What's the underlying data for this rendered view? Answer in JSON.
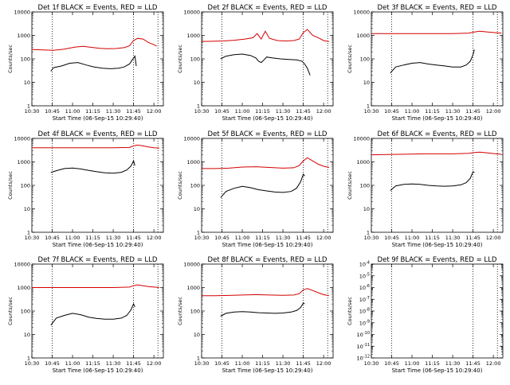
{
  "figure": {
    "background": "#ffffff",
    "axis_color": "#000000",
    "event_color": "#000000",
    "lld_color": "#d40000"
  },
  "chart_data": [
    {
      "id": "p1",
      "type": "line",
      "title": "Det 1f BLACK = Events, RED = LLD",
      "xlabel": "Start Time (06-Sep-15 10:29:40)",
      "ylabel": "Counts/sec",
      "xlim": [
        "10:30",
        "12:07"
      ],
      "ylim": [
        1,
        10000
      ],
      "yscale": "log",
      "xticks": [
        "10:30",
        "10:45",
        "11:00",
        "11:15",
        "11:30",
        "11:45",
        "12:00"
      ],
      "yticks": [
        "1",
        "10",
        "100",
        "1000",
        "10000"
      ],
      "vlines": [
        "10:45",
        "11:45",
        "12:03"
      ],
      "series": [
        {
          "name": "Events",
          "x": [
            "10:44",
            "10:46",
            "10:52",
            "10:58",
            "11:04",
            "11:10",
            "11:16",
            "11:22",
            "11:28",
            "11:34",
            "11:38",
            "11:42",
            "11:44",
            "11:46",
            "11:47"
          ],
          "values": [
            30,
            42,
            50,
            65,
            70,
            55,
            45,
            40,
            38,
            40,
            45,
            60,
            90,
            130,
            50
          ]
        },
        {
          "name": "LLD",
          "x": [
            "10:30",
            "10:38",
            "10:46",
            "10:54",
            "11:02",
            "11:08",
            "11:14",
            "11:20",
            "11:26",
            "11:32",
            "11:38",
            "11:42",
            "11:45",
            "11:48",
            "11:52",
            "11:56",
            "12:00",
            "12:02"
          ],
          "values": [
            250,
            240,
            230,
            260,
            320,
            340,
            310,
            280,
            270,
            275,
            300,
            360,
            600,
            750,
            700,
            500,
            400,
            350
          ]
        }
      ]
    },
    {
      "id": "p2",
      "type": "line",
      "title": "Det 2f BLACK = Events, RED = LLD",
      "xlabel": "Start Time (06-Sep-15 10:29:40)",
      "ylabel": "Counts/sec",
      "xlim": [
        "10:30",
        "12:07"
      ],
      "ylim": [
        1,
        10000
      ],
      "yscale": "log",
      "xticks": [
        "10:30",
        "10:45",
        "11:00",
        "11:15",
        "11:30",
        "11:45",
        "12:00"
      ],
      "yticks": [
        "1",
        "10",
        "100",
        "1000",
        "10000"
      ],
      "vlines": [
        "10:45",
        "11:45",
        "12:03"
      ],
      "series": [
        {
          "name": "Events",
          "x": [
            "10:44",
            "10:48",
            "10:54",
            "11:00",
            "11:06",
            "11:10",
            "11:12",
            "11:14",
            "11:16",
            "11:18",
            "11:22",
            "11:28",
            "11:34",
            "11:40",
            "11:44",
            "11:46",
            "11:48",
            "11:50"
          ],
          "values": [
            100,
            130,
            150,
            160,
            140,
            110,
            80,
            70,
            90,
            120,
            110,
            100,
            95,
            90,
            80,
            60,
            40,
            20
          ]
        },
        {
          "name": "LLD",
          "x": [
            "10:30",
            "10:38",
            "10:46",
            "10:54",
            "11:02",
            "11:08",
            "11:11",
            "11:14",
            "11:17",
            "11:20",
            "11:26",
            "11:32",
            "11:38",
            "11:42",
            "11:45",
            "11:48",
            "11:52",
            "11:56",
            "12:00",
            "12:04"
          ],
          "values": [
            550,
            560,
            580,
            620,
            700,
            800,
            1200,
            700,
            1500,
            750,
            600,
            580,
            600,
            700,
            1300,
            1800,
            1000,
            800,
            600,
            550
          ]
        }
      ]
    },
    {
      "id": "p3",
      "type": "line",
      "title": "Det 3f BLACK = Events, RED = LLD",
      "xlabel": "Start Time (06-Sep-15 10:29:40)",
      "ylabel": "Counts/sec",
      "xlim": [
        "10:30",
        "12:07"
      ],
      "ylim": [
        1,
        10000
      ],
      "yscale": "log",
      "xticks": [
        "10:30",
        "10:45",
        "11:00",
        "11:15",
        "11:30",
        "11:45",
        "12:00"
      ],
      "yticks": [
        "1",
        "10",
        "100",
        "1000",
        "10000"
      ],
      "vlines": [
        "10:45",
        "11:45",
        "12:03"
      ],
      "series": [
        {
          "name": "Events",
          "x": [
            "10:44",
            "10:48",
            "10:54",
            "11:00",
            "11:06",
            "11:12",
            "11:18",
            "11:24",
            "11:30",
            "11:36",
            "11:40",
            "11:43",
            "11:45",
            "11:46"
          ],
          "values": [
            25,
            45,
            55,
            65,
            70,
            60,
            55,
            50,
            45,
            45,
            55,
            80,
            150,
            250
          ]
        },
        {
          "name": "LLD",
          "x": [
            "10:30",
            "10:50",
            "11:10",
            "11:30",
            "11:42",
            "11:46",
            "11:50",
            "11:56",
            "12:02",
            "12:06"
          ],
          "values": [
            1200,
            1200,
            1200,
            1200,
            1250,
            1400,
            1500,
            1400,
            1300,
            1250
          ]
        }
      ]
    },
    {
      "id": "p4",
      "type": "line",
      "title": "Det 4f BLACK = Events, RED = LLD",
      "xlabel": "Start Time (06-Sep-15 10:29:40)",
      "ylabel": "Counts/sec",
      "xlim": [
        "10:30",
        "12:07"
      ],
      "ylim": [
        1,
        10000
      ],
      "yscale": "log",
      "xticks": [
        "10:30",
        "10:45",
        "11:00",
        "11:15",
        "11:30",
        "11:45",
        "12:00"
      ],
      "yticks": [
        "1",
        "10",
        "100",
        "1000",
        "10000"
      ],
      "vlines": [
        "10:45",
        "11:45",
        "12:03"
      ],
      "series": [
        {
          "name": "Events",
          "x": [
            "10:44",
            "10:48",
            "10:54",
            "11:00",
            "11:06",
            "11:12",
            "11:18",
            "11:24",
            "11:30",
            "11:36",
            "11:40",
            "11:43",
            "11:45",
            "11:46"
          ],
          "values": [
            350,
            420,
            520,
            550,
            500,
            430,
            380,
            340,
            330,
            360,
            450,
            650,
            1100,
            700
          ]
        },
        {
          "name": "LLD",
          "x": [
            "10:30",
            "10:50",
            "11:10",
            "11:30",
            "11:42",
            "11:45",
            "11:48",
            "11:52",
            "11:56",
            "12:00",
            "12:04"
          ],
          "values": [
            4000,
            4000,
            4000,
            4000,
            4100,
            4800,
            5200,
            4800,
            4300,
            4000,
            3900
          ]
        }
      ]
    },
    {
      "id": "p5",
      "type": "line",
      "title": "Det 5f BLACK = Events, RED = LLD",
      "xlabel": "Start Time (06-Sep-15 10:29:40)",
      "ylabel": "Counts/sec",
      "xlim": [
        "10:30",
        "12:07"
      ],
      "ylim": [
        1,
        10000
      ],
      "yscale": "log",
      "xticks": [
        "10:30",
        "10:45",
        "11:00",
        "11:15",
        "11:30",
        "11:45",
        "12:00"
      ],
      "yticks": [
        "1",
        "10",
        "100",
        "1000",
        "10000"
      ],
      "vlines": [
        "10:45",
        "11:45",
        "12:03"
      ],
      "series": [
        {
          "name": "Events",
          "x": [
            "10:44",
            "10:48",
            "10:54",
            "11:00",
            "11:06",
            "11:12",
            "11:18",
            "11:24",
            "11:30",
            "11:36",
            "11:40",
            "11:43",
            "11:45",
            "11:46"
          ],
          "values": [
            30,
            55,
            75,
            90,
            80,
            65,
            58,
            52,
            50,
            55,
            75,
            140,
            300,
            250
          ]
        },
        {
          "name": "LLD",
          "x": [
            "10:30",
            "10:40",
            "10:50",
            "11:00",
            "11:10",
            "11:20",
            "11:30",
            "11:38",
            "11:42",
            "11:45",
            "11:48",
            "11:52",
            "11:56",
            "12:00",
            "12:04"
          ],
          "values": [
            520,
            520,
            540,
            600,
            620,
            580,
            540,
            560,
            700,
            1100,
            1500,
            1100,
            800,
            650,
            580
          ]
        }
      ]
    },
    {
      "id": "p6",
      "type": "line",
      "title": "Det 6f BLACK = Events, RED = LLD",
      "xlabel": "Start Time (06-Sep-15 10:29:40)",
      "ylabel": "Counts/sec",
      "xlim": [
        "10:30",
        "12:07"
      ],
      "ylim": [
        1,
        10000
      ],
      "yscale": "log",
      "xticks": [
        "10:30",
        "10:45",
        "11:00",
        "11:15",
        "11:30",
        "11:45",
        "12:00"
      ],
      "yticks": [
        "1",
        "10",
        "100",
        "1000",
        "10000"
      ],
      "vlines": [
        "10:45",
        "11:45",
        "12:03"
      ],
      "series": [
        {
          "name": "Events",
          "x": [
            "10:44",
            "10:48",
            "10:54",
            "11:00",
            "11:06",
            "11:12",
            "11:18",
            "11:24",
            "11:30",
            "11:36",
            "11:40",
            "11:43",
            "11:45",
            "11:46"
          ],
          "values": [
            60,
            95,
            110,
            115,
            110,
            100,
            95,
            92,
            95,
            105,
            130,
            200,
            380,
            350
          ]
        },
        {
          "name": "LLD",
          "x": [
            "10:30",
            "10:50",
            "11:10",
            "11:30",
            "11:42",
            "11:46",
            "11:50",
            "11:56",
            "12:02",
            "12:06"
          ],
          "values": [
            2000,
            2100,
            2200,
            2200,
            2300,
            2500,
            2600,
            2400,
            2200,
            2100
          ]
        }
      ]
    },
    {
      "id": "p7",
      "type": "line",
      "title": "Det 7f BLACK = Events, RED = LLD",
      "xlabel": "Start Time (06-Sep-15 10:29:40)",
      "ylabel": "Counts/sec",
      "xlim": [
        "10:30",
        "12:07"
      ],
      "ylim": [
        1,
        10000
      ],
      "yscale": "log",
      "xticks": [
        "10:30",
        "10:45",
        "11:00",
        "11:15",
        "11:30",
        "11:45",
        "12:00"
      ],
      "yticks": [
        "1",
        "10",
        "100",
        "1000",
        "10000"
      ],
      "vlines": [
        "10:45",
        "11:45",
        "12:03"
      ],
      "series": [
        {
          "name": "Events",
          "x": [
            "10:44",
            "10:48",
            "10:54",
            "11:00",
            "11:06",
            "11:12",
            "11:18",
            "11:24",
            "11:30",
            "11:36",
            "11:40",
            "11:43",
            "11:45",
            "11:46"
          ],
          "values": [
            25,
            50,
            65,
            80,
            70,
            55,
            48,
            45,
            45,
            50,
            65,
            110,
            200,
            150
          ]
        },
        {
          "name": "LLD",
          "x": [
            "10:30",
            "10:50",
            "11:10",
            "11:30",
            "11:42",
            "11:45",
            "11:48",
            "11:52",
            "11:56",
            "12:00",
            "12:04"
          ],
          "values": [
            1000,
            1000,
            1000,
            1000,
            1050,
            1200,
            1300,
            1200,
            1100,
            1050,
            1000
          ]
        }
      ]
    },
    {
      "id": "p8",
      "type": "line",
      "title": "Det 8f BLACK = Events, RED = LLD",
      "xlabel": "Start Time (06-Sep-15 10:29:40)",
      "ylabel": "Counts/sec",
      "xlim": [
        "10:30",
        "12:07"
      ],
      "ylim": [
        1,
        10000
      ],
      "yscale": "log",
      "xticks": [
        "10:30",
        "10:45",
        "11:00",
        "11:15",
        "11:30",
        "11:45",
        "12:00"
      ],
      "yticks": [
        "1",
        "10",
        "100",
        "1000",
        "10000"
      ],
      "vlines": [
        "10:45",
        "11:45",
        "12:03"
      ],
      "series": [
        {
          "name": "Events",
          "x": [
            "10:44",
            "10:48",
            "10:54",
            "11:00",
            "11:06",
            "11:12",
            "11:18",
            "11:24",
            "11:30",
            "11:36",
            "11:40",
            "11:43",
            "11:45",
            "11:46"
          ],
          "values": [
            60,
            80,
            90,
            95,
            90,
            85,
            82,
            80,
            82,
            90,
            105,
            140,
            220,
            200
          ]
        },
        {
          "name": "LLD",
          "x": [
            "10:30",
            "10:40",
            "10:50",
            "11:00",
            "11:10",
            "11:20",
            "11:30",
            "11:38",
            "11:42",
            "11:45",
            "11:48",
            "11:52",
            "11:56",
            "12:00",
            "12:04"
          ],
          "values": [
            450,
            450,
            460,
            480,
            500,
            480,
            470,
            480,
            550,
            800,
            900,
            750,
            600,
            500,
            450
          ]
        }
      ]
    },
    {
      "id": "p9",
      "type": "line",
      "title": "Det 9f BLACK = Events, RED = LLD",
      "xlabel": "Start Time (06-Sep-15 10:29:40)",
      "ylabel": "Counts/sec",
      "xlim": [
        "10:30",
        "12:07"
      ],
      "ylim": [
        1e-12,
        0.0001
      ],
      "yscale": "log",
      "xticks": [
        "10:30",
        "10:45",
        "11:00",
        "11:15",
        "11:30",
        "11:45",
        "12:00"
      ],
      "yticks": [
        "10^-12",
        "10^-11",
        "10^-10",
        "10^-9",
        "10^-8",
        "10^-7",
        "10^-6",
        "10^-5",
        "10^-4"
      ],
      "vlines": [
        "10:45",
        "11:45",
        "12:03"
      ],
      "series": []
    }
  ]
}
